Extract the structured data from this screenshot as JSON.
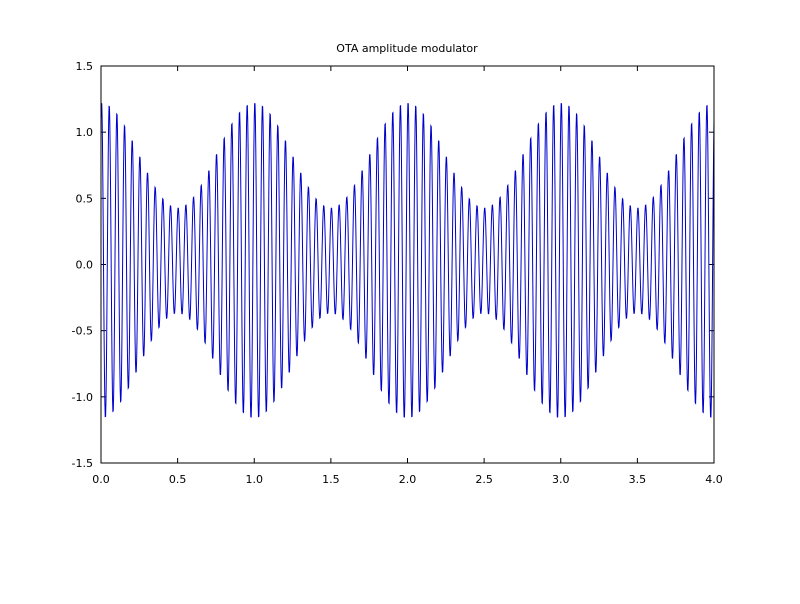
{
  "chart_data": {
    "type": "line",
    "title": "OTA amplitude modulator",
    "xlabel": "",
    "ylabel": "",
    "xlim": [
      0.0,
      4.0
    ],
    "ylim": [
      -1.5,
      1.5
    ],
    "x_ticks": [
      "0.0",
      "0.5",
      "1.0",
      "1.5",
      "2.0",
      "2.5",
      "3.0",
      "3.5",
      "4.0"
    ],
    "y_ticks": [
      "-1.5",
      "-1.0",
      "-0.5",
      "0.0",
      "0.5",
      "1.0",
      "1.5"
    ],
    "grid": false,
    "legend": "none",
    "series": [
      {
        "color": "#0000cc",
        "signal": {
          "form": "carrier * (offset + depth * cos(2*pi*mod_freq*x)) + dc",
          "carrier_freq": 20,
          "carrier_phase": 1.1,
          "mod_freq": 1,
          "offset": 0.8,
          "depth": 0.4,
          "dc": 0.03,
          "x_start": 0.0,
          "x_end": 4.0,
          "samples": 1600
        }
      }
    ]
  }
}
